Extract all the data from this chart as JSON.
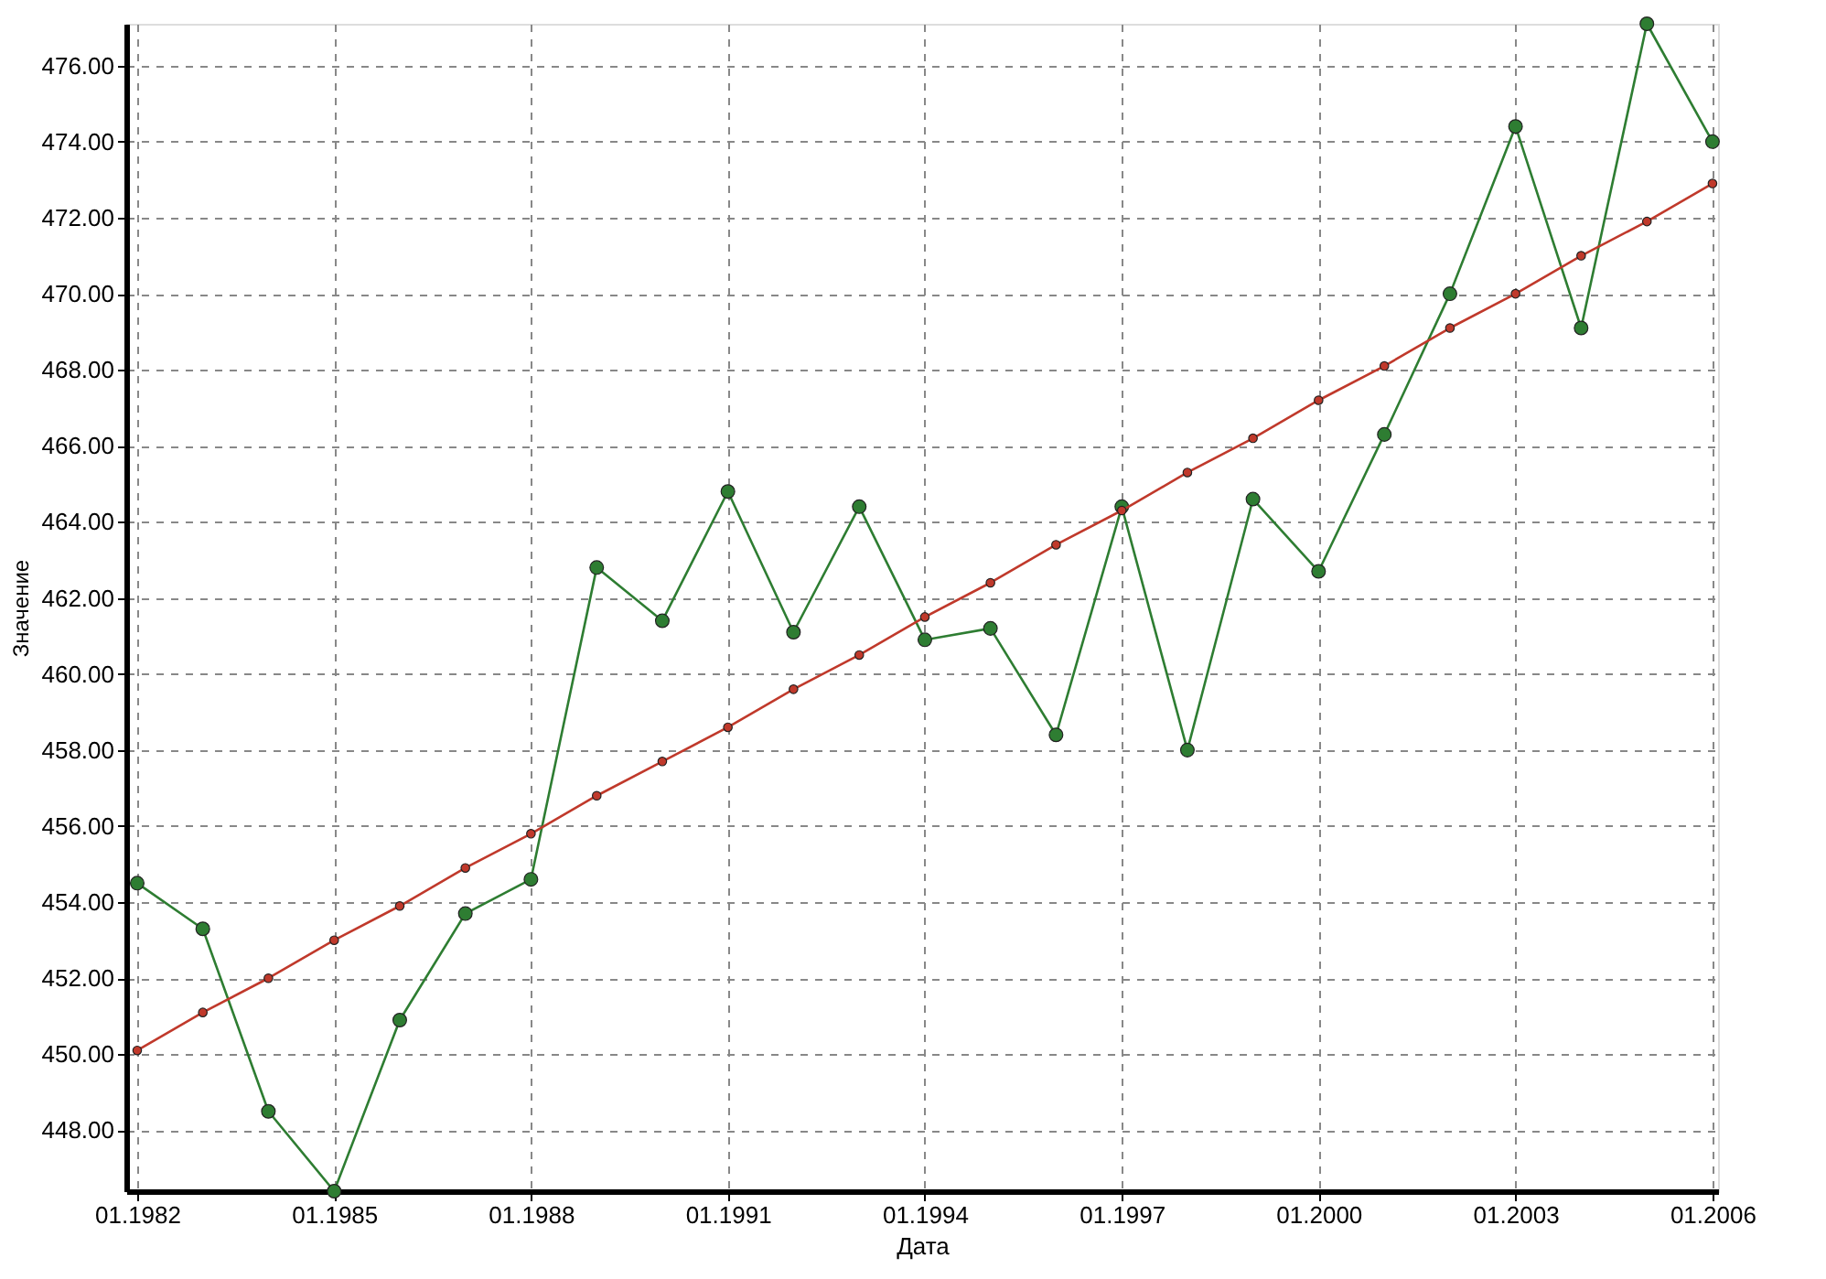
{
  "chart_data": {
    "type": "line",
    "xlabel": "Дата",
    "ylabel": "Значение",
    "x": [
      "1982-01",
      "1983-01",
      "1984-01",
      "1985-01",
      "1986-01",
      "1987-01",
      "1988-01",
      "1989-01",
      "1990-01",
      "1991-01",
      "1992-01",
      "1993-01",
      "1994-01",
      "1995-01",
      "1996-01",
      "1997-01",
      "1998-01",
      "1999-01",
      "2000-01",
      "2001-01",
      "2002-01",
      "2003-01",
      "2004-01",
      "2005-01",
      "2006-01"
    ],
    "series": [
      {
        "color": "#2e7d32",
        "values": [
          454.5,
          453.3,
          448.5,
          446.4,
          450.9,
          453.7,
          454.6,
          462.8,
          461.4,
          464.8,
          461.1,
          464.4,
          460.9,
          461.2,
          458.4,
          464.4,
          458.0,
          464.6,
          462.7,
          466.3,
          470.0,
          474.4,
          469.1,
          477.1,
          474.0
        ]
      },
      {
        "color": "#c0392b",
        "values": [
          450.1,
          451.1,
          452.0,
          453.0,
          453.9,
          454.9,
          455.8,
          456.8,
          457.7,
          458.6,
          459.6,
          460.5,
          461.5,
          462.4,
          463.4,
          464.3,
          465.3,
          466.2,
          467.2,
          468.1,
          469.1,
          470.0,
          471.0,
          471.9,
          472.9
        ]
      }
    ],
    "xlim": [
      "1981-11",
      "2006-02"
    ],
    "xticks": [
      {
        "value": "1982-01",
        "label": "01.1982"
      },
      {
        "value": "1985-01",
        "label": "01.1985"
      },
      {
        "value": "1988-01",
        "label": "01.1988"
      },
      {
        "value": "1991-01",
        "label": "01.1991"
      },
      {
        "value": "1994-01",
        "label": "01.1994"
      },
      {
        "value": "1997-01",
        "label": "01.1997"
      },
      {
        "value": "2000-01",
        "label": "01.2000"
      },
      {
        "value": "2003-01",
        "label": "01.2003"
      },
      {
        "value": "2006-01",
        "label": "01.2006"
      }
    ],
    "ylim": [
      446.4,
      477.1
    ],
    "yticks": [
      {
        "value": 448,
        "label": "448.00"
      },
      {
        "value": 450,
        "label": "450.00"
      },
      {
        "value": 452,
        "label": "452.00"
      },
      {
        "value": 454,
        "label": "454.00"
      },
      {
        "value": 456,
        "label": "456.00"
      },
      {
        "value": 458,
        "label": "458.00"
      },
      {
        "value": 460,
        "label": "460.00"
      },
      {
        "value": 462,
        "label": "462.00"
      },
      {
        "value": 464,
        "label": "464.00"
      },
      {
        "value": 466,
        "label": "466.00"
      },
      {
        "value": 468,
        "label": "468.00"
      },
      {
        "value": 470,
        "label": "470.00"
      },
      {
        "value": 472,
        "label": "472.00"
      },
      {
        "value": 474,
        "label": "474.00"
      },
      {
        "value": 476,
        "label": "476.00"
      }
    ],
    "grid": true,
    "marker": "circle",
    "line_style": "solid"
  }
}
